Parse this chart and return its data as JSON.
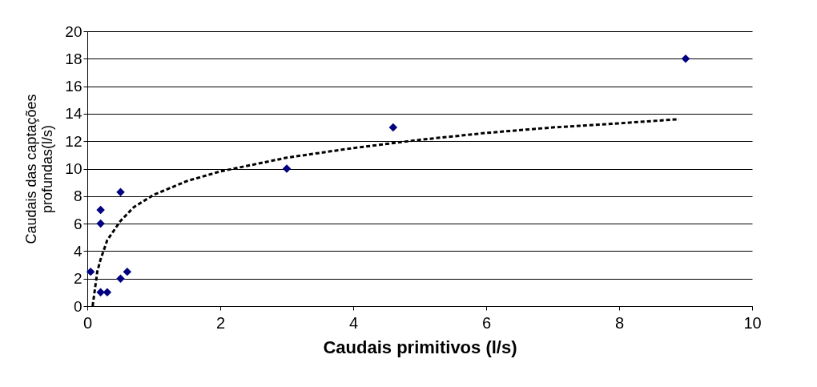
{
  "chart_data": {
    "type": "scatter",
    "xlabel": "Caudais primitivos (l/s)",
    "ylabel": "Caudais das captações\nprofundas(l/s)",
    "xlim": [
      0,
      10
    ],
    "xticks": [
      0,
      2,
      4,
      6,
      8,
      10
    ],
    "ylim": [
      0,
      20
    ],
    "yticks": [
      0,
      2,
      4,
      6,
      8,
      10,
      12,
      14,
      16,
      18,
      20
    ],
    "grid": "y",
    "series": [
      {
        "color": "#000080",
        "marker": "diamond",
        "x": [
          0.05,
          0.2,
          0.2,
          0.2,
          0.3,
          0.5,
          0.5,
          0.6,
          3.0,
          4.6,
          9.0
        ],
        "values": [
          2.5,
          7,
          6,
          1,
          1,
          8.3,
          2,
          2.5,
          10,
          13,
          18
        ]
      },
      {
        "type": "line",
        "color": "#000000",
        "line_style": "dashed",
        "x": [
          0.08,
          0.15,
          0.2,
          0.3,
          0.5,
          0.7,
          1,
          1.5,
          2,
          3,
          4,
          5,
          6,
          7,
          8,
          8.9
        ],
        "values": [
          0,
          2.5,
          3.4,
          4.8,
          6.2,
          7.2,
          8.1,
          9.1,
          9.8,
          10.8,
          11.5,
          12.1,
          12.6,
          13.0,
          13.3,
          13.6
        ]
      }
    ]
  }
}
